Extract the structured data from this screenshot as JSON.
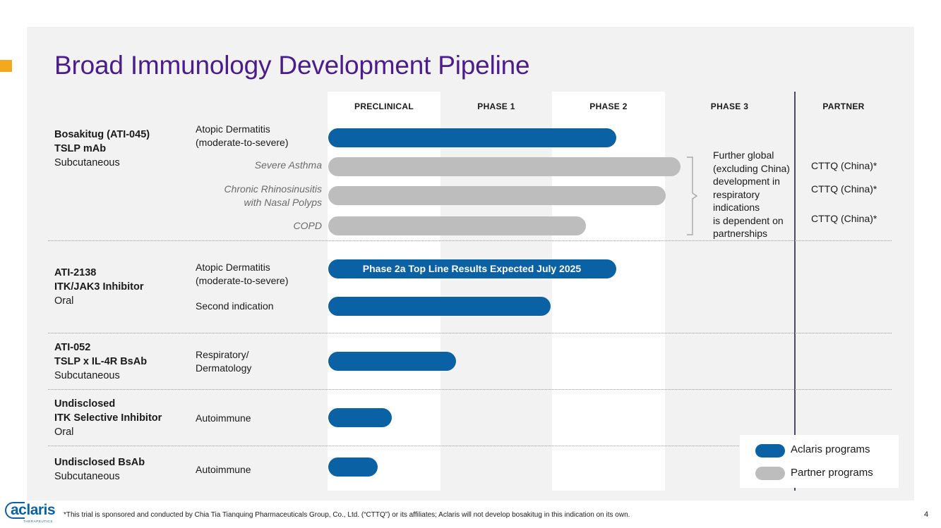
{
  "title": "Broad Immunology Development Pipeline",
  "colors": {
    "aclaris_blue": "#0a61a4",
    "partner_gray": "#bdbdbd",
    "title_purple": "#4b1d8c",
    "accent_orange": "#f4a81c"
  },
  "columns": [
    "PRECLINICAL",
    "PHASE 1",
    "PHASE 2",
    "PHASE 3",
    "PARTNER"
  ],
  "programs": [
    {
      "name": "Bosakitug (ATI-045)",
      "target": "TSLP mAb",
      "route": "Subcutaneous"
    },
    {
      "name": "ATI-2138",
      "target": "ITK/JAK3 Inhibitor",
      "route": "Oral"
    },
    {
      "name": "ATI-052",
      "target": "TSLP x IL-4R BsAb",
      "route": "Subcutaneous"
    },
    {
      "name": "Undisclosed",
      "target": "ITK Selective Inhibitor",
      "route": "Oral"
    },
    {
      "name": "Undisclosed BsAb",
      "route": "Subcutaneous"
    }
  ],
  "indications": {
    "ad1_l1": "Atopic Dermatitis",
    "ad1_l2": "(moderate-to-severe)",
    "severe_asthma": "Severe Asthma",
    "crs_l1": "Chronic Rhinosinusitis",
    "crs_l2": "with Nasal Polyps",
    "copd": "COPD",
    "ad2_l1": "Atopic Dermatitis",
    "ad2_l2": "(moderate-to-severe)",
    "second": "Second indication",
    "resp_l1": "Respiratory/",
    "resp_l2": "Dermatology",
    "auto1": "Autoimmune",
    "auto2": "Autoimmune"
  },
  "bar_label": "Phase 2a Top Line Results Expected July 2025",
  "phase3_note": [
    "Further global",
    "(excluding China)",
    "development in",
    "respiratory",
    "indications",
    "is dependent on",
    "partnerships"
  ],
  "partners": [
    "CTTQ (China)*",
    "CTTQ (China)*",
    "CTTQ (China)*"
  ],
  "legend": {
    "aclaris": "Aclaris programs",
    "partner": "Partner programs"
  },
  "logo": {
    "brand": "aclaris",
    "sub": "THERAPEUTICS"
  },
  "footnote": "*This trial is sponsored and conducted by Chia Tia Tianquing Pharmaceuticals Group, Co., Ltd. (“CTTQ”) or its affiliates; Aclaris will not develop bosakitug in this indication on its own.",
  "page_number": "4"
}
